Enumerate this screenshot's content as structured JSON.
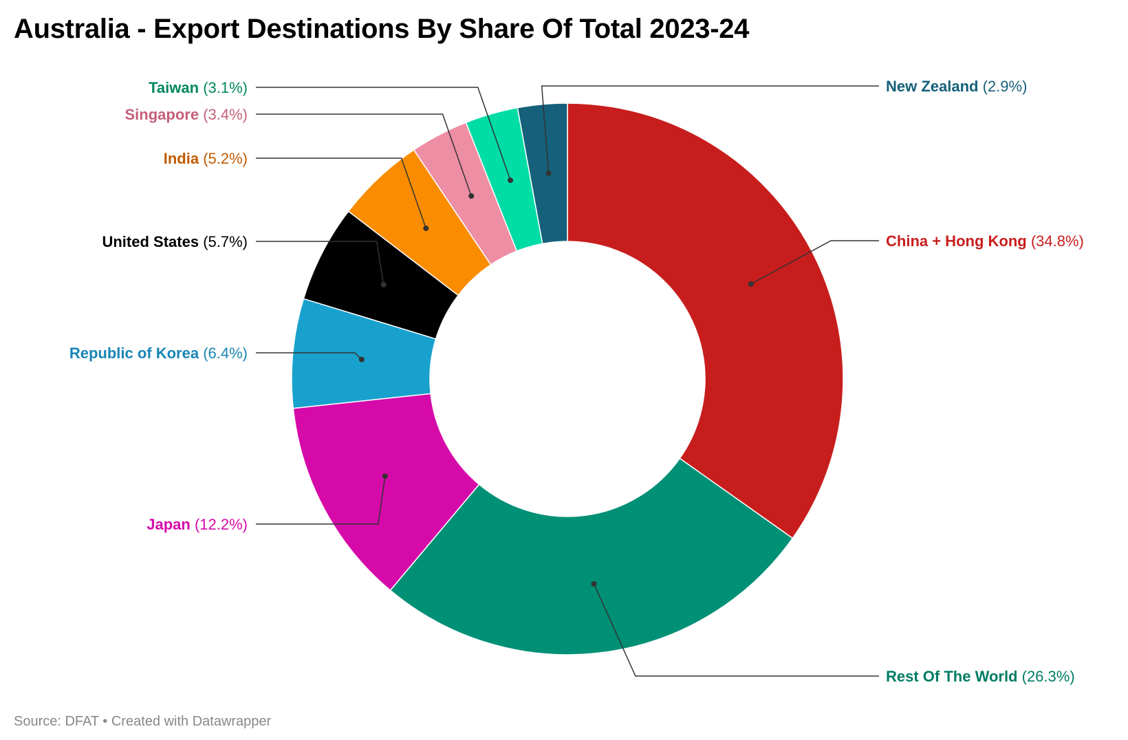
{
  "title": "Australia - Export Destinations By Share Of Total 2023-24",
  "source": "Source: DFAT • Created with Datawrapper",
  "chart_data": {
    "type": "pie",
    "title": "Australia - Export Destinations By Share Of Total 2023-24",
    "slices": [
      {
        "label": "China + Hong Kong",
        "value": 34.8,
        "value_text": "(34.8%)",
        "color": "#c71e1d",
        "label_side": "right"
      },
      {
        "label": "Rest Of The World",
        "value": 26.3,
        "value_text": "(26.3%)",
        "color": "#009076",
        "label_side": "right"
      },
      {
        "label": "Japan",
        "value": 12.2,
        "value_text": "(12.2%)",
        "color": "#d60aa9",
        "label_side": "left"
      },
      {
        "label": "Republic of Korea",
        "value": 6.4,
        "value_text": "(6.4%)",
        "color": "#18a1cd",
        "label_side": "left"
      },
      {
        "label": "United States",
        "value": 5.7,
        "value_text": "(5.7%)",
        "color": "#000000",
        "label_side": "left"
      },
      {
        "label": "India",
        "value": 5.2,
        "value_text": "(5.2%)",
        "color": "#fa8c00",
        "label_side": "left"
      },
      {
        "label": "Singapore",
        "value": 3.4,
        "value_text": "(3.4%)",
        "color": "#ed8ea4",
        "label_side": "left"
      },
      {
        "label": "Taiwan",
        "value": 3.1,
        "value_text": "(3.1%)",
        "color": "#00dca6",
        "label_side": "left"
      },
      {
        "label": "New Zealand",
        "value": 2.9,
        "value_text": "(2.9%)",
        "color": "#15607a",
        "label_side": "right"
      }
    ],
    "label_colors": {
      "China + Hong Kong": "#c71e1d",
      "Rest Of The World": "#007c65",
      "Japan": "#d60aa9",
      "Republic of Korea": "#1a85b5",
      "United States": "#000000",
      "India": "#c05a00",
      "Singapore": "#c45f7a",
      "Taiwan": "#00875f",
      "New Zealand": "#15607a"
    },
    "donut": true,
    "legend": "none"
  }
}
